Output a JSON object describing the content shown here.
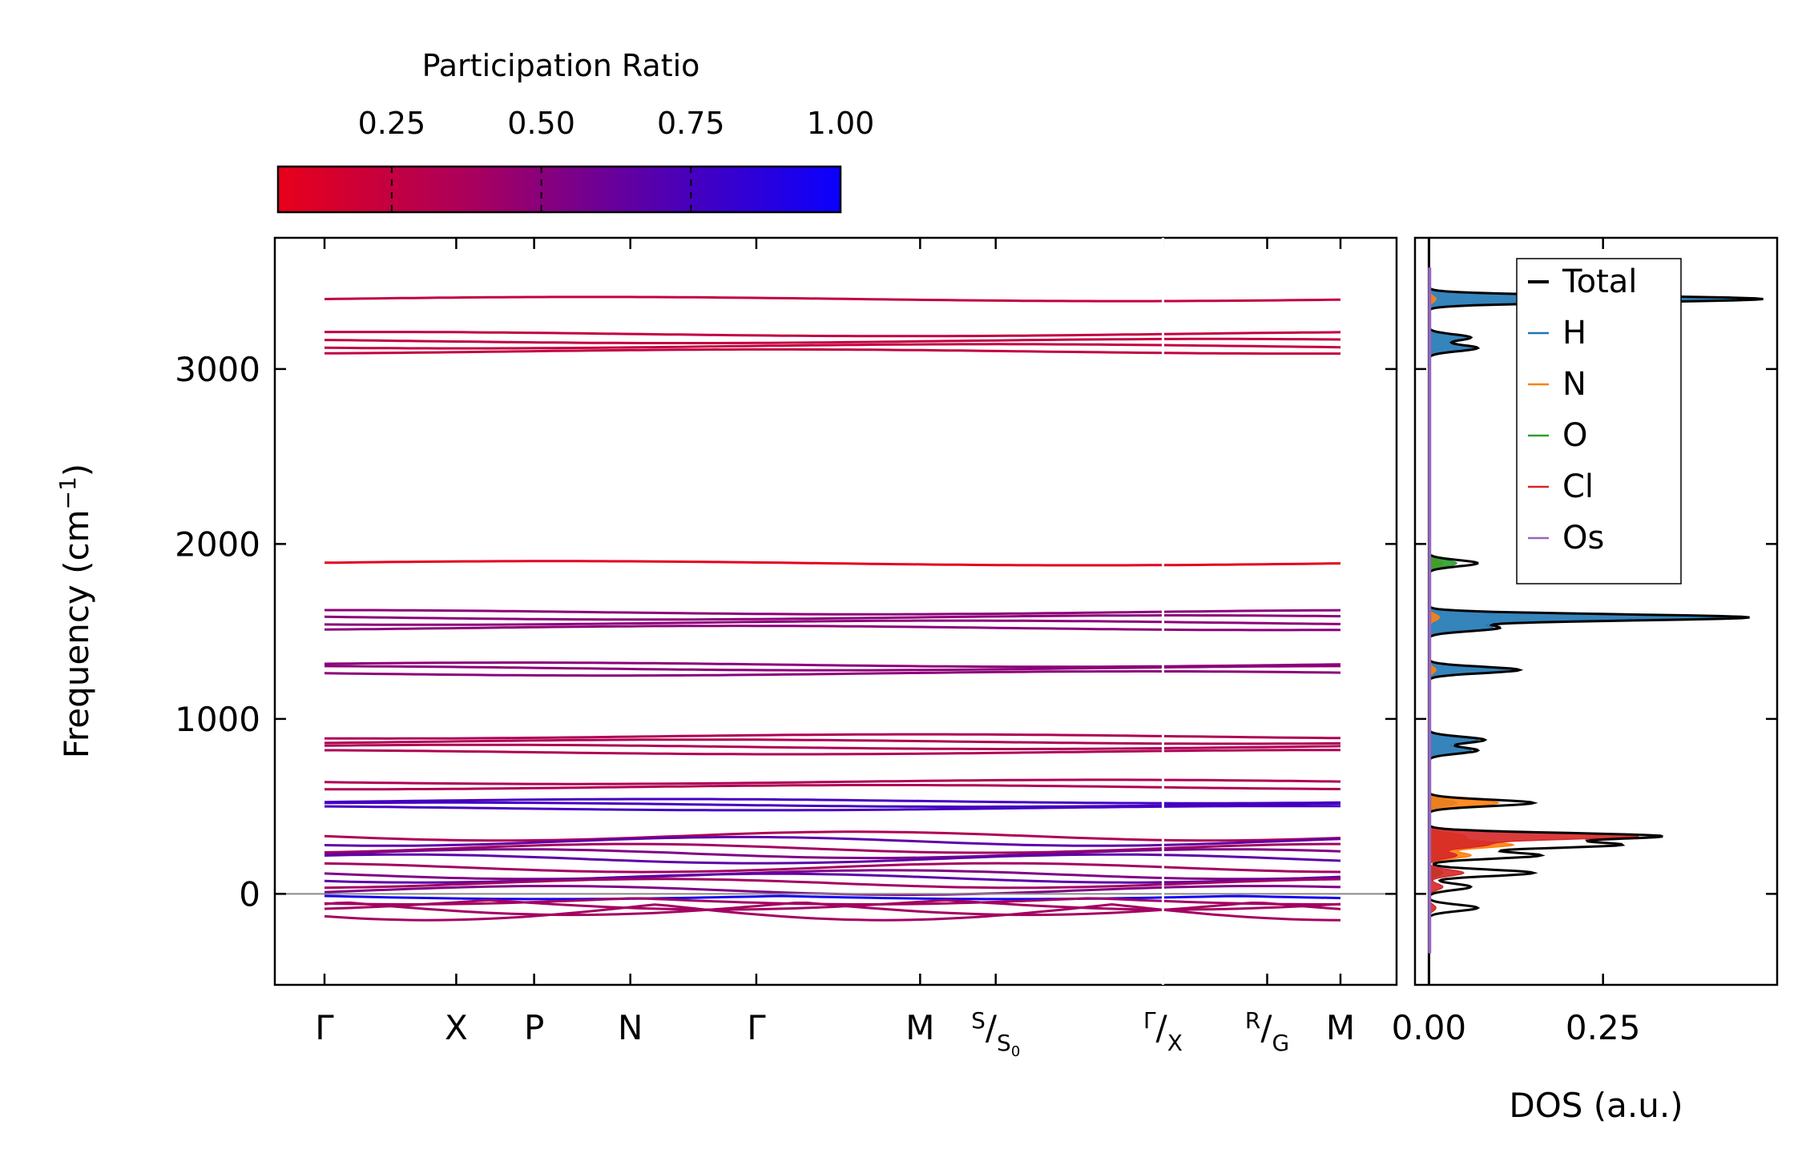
{
  "chart_data": [
    {
      "type": "line",
      "name": "phonon-band-structure",
      "ylabel_main": "Frequency (cm",
      "ylabel_sup": "−1",
      "ylabel_end": ")",
      "ylim": [
        -520,
        3750
      ],
      "yticks": [
        0,
        1000,
        2000,
        3000
      ],
      "kpoints": [
        {
          "main": "Γ",
          "pos": 0.0
        },
        {
          "main": "X",
          "pos": 0.115
        },
        {
          "main": "P",
          "pos": 0.183
        },
        {
          "main": "N",
          "pos": 0.267
        },
        {
          "main": "Γ",
          "pos": 0.377
        },
        {
          "main": "M",
          "pos": 0.52
        },
        {
          "sup": "S",
          "sub": "S",
          "subsub": "0",
          "pos": 0.586
        },
        {
          "sup": "Γ",
          "sub": "X",
          "pos": 0.732
        },
        {
          "sup": "R",
          "sub": "G",
          "pos": 0.823
        },
        {
          "main": "M",
          "pos": 0.887
        }
      ],
      "bands_cm1": [
        3400,
        3200,
        3160,
        3130,
        3100,
        1890,
        1610,
        1580,
        1550,
        1520,
        1310,
        1290,
        1260,
        900,
        870,
        840,
        810,
        640,
        610,
        530,
        510,
        490,
        330,
        300,
        260,
        230,
        200,
        150,
        110,
        90,
        60,
        20
      ],
      "imaginary_bands_cm1": [
        -30,
        -60,
        -90,
        -120,
        -150
      ],
      "colorbar": {
        "title": "Participation Ratio",
        "ticks": [
          "0.25",
          "0.50",
          "0.75",
          "1.00"
        ],
        "tick_values": [
          0.25,
          0.5,
          0.75,
          1.0
        ],
        "range": [
          0.06,
          1.0
        ],
        "low_color": "#e8001a",
        "high_color": "#0a00ff"
      }
    },
    {
      "type": "area",
      "name": "phonon-dos",
      "xlabel": "DOS (a.u.)",
      "xticks": [
        "0.00",
        "0.25"
      ],
      "xtick_values": [
        0.0,
        0.25
      ],
      "xlim": [
        -0.02,
        0.5
      ],
      "series": [
        {
          "name": "Total",
          "color": "#000000"
        },
        {
          "name": "H",
          "color": "#1f77b4"
        },
        {
          "name": "N",
          "color": "#ff7f0e"
        },
        {
          "name": "O",
          "color": "#2ca02c"
        },
        {
          "name": "Cl",
          "color": "#d62728"
        },
        {
          "name": "Os",
          "color": "#9467bd"
        }
      ],
      "peaks": [
        {
          "freq": 3400,
          "total": 0.48,
          "H": 0.44,
          "N": 0.01
        },
        {
          "freq": 3180,
          "total": 0.06,
          "H": 0.055
        },
        {
          "freq": 3120,
          "total": 0.07,
          "H": 0.065
        },
        {
          "freq": 1890,
          "total": 0.07,
          "O": 0.04,
          "N": 0.02
        },
        {
          "freq": 1580,
          "total": 0.46,
          "H": 0.44,
          "N": 0.015
        },
        {
          "freq": 1520,
          "total": 0.1,
          "H": 0.09
        },
        {
          "freq": 1280,
          "total": 0.13,
          "H": 0.12,
          "N": 0.01
        },
        {
          "freq": 880,
          "total": 0.08,
          "H": 0.07
        },
        {
          "freq": 820,
          "total": 0.07,
          "H": 0.06
        },
        {
          "freq": 520,
          "total": 0.15,
          "N": 0.1,
          "H": 0.04
        },
        {
          "freq": 330,
          "total": 0.33,
          "Cl": 0.3,
          "N": 0.05
        },
        {
          "freq": 280,
          "total": 0.27,
          "Cl": 0.08,
          "N": 0.12
        },
        {
          "freq": 220,
          "total": 0.16,
          "Cl": 0.04,
          "N": 0.06
        },
        {
          "freq": 120,
          "total": 0.15,
          "Cl": 0.05,
          "O": 0.02
        },
        {
          "freq": 40,
          "total": 0.06,
          "Cl": 0.02
        },
        {
          "freq": -80,
          "total": 0.07,
          "Cl": 0.01
        }
      ]
    }
  ]
}
